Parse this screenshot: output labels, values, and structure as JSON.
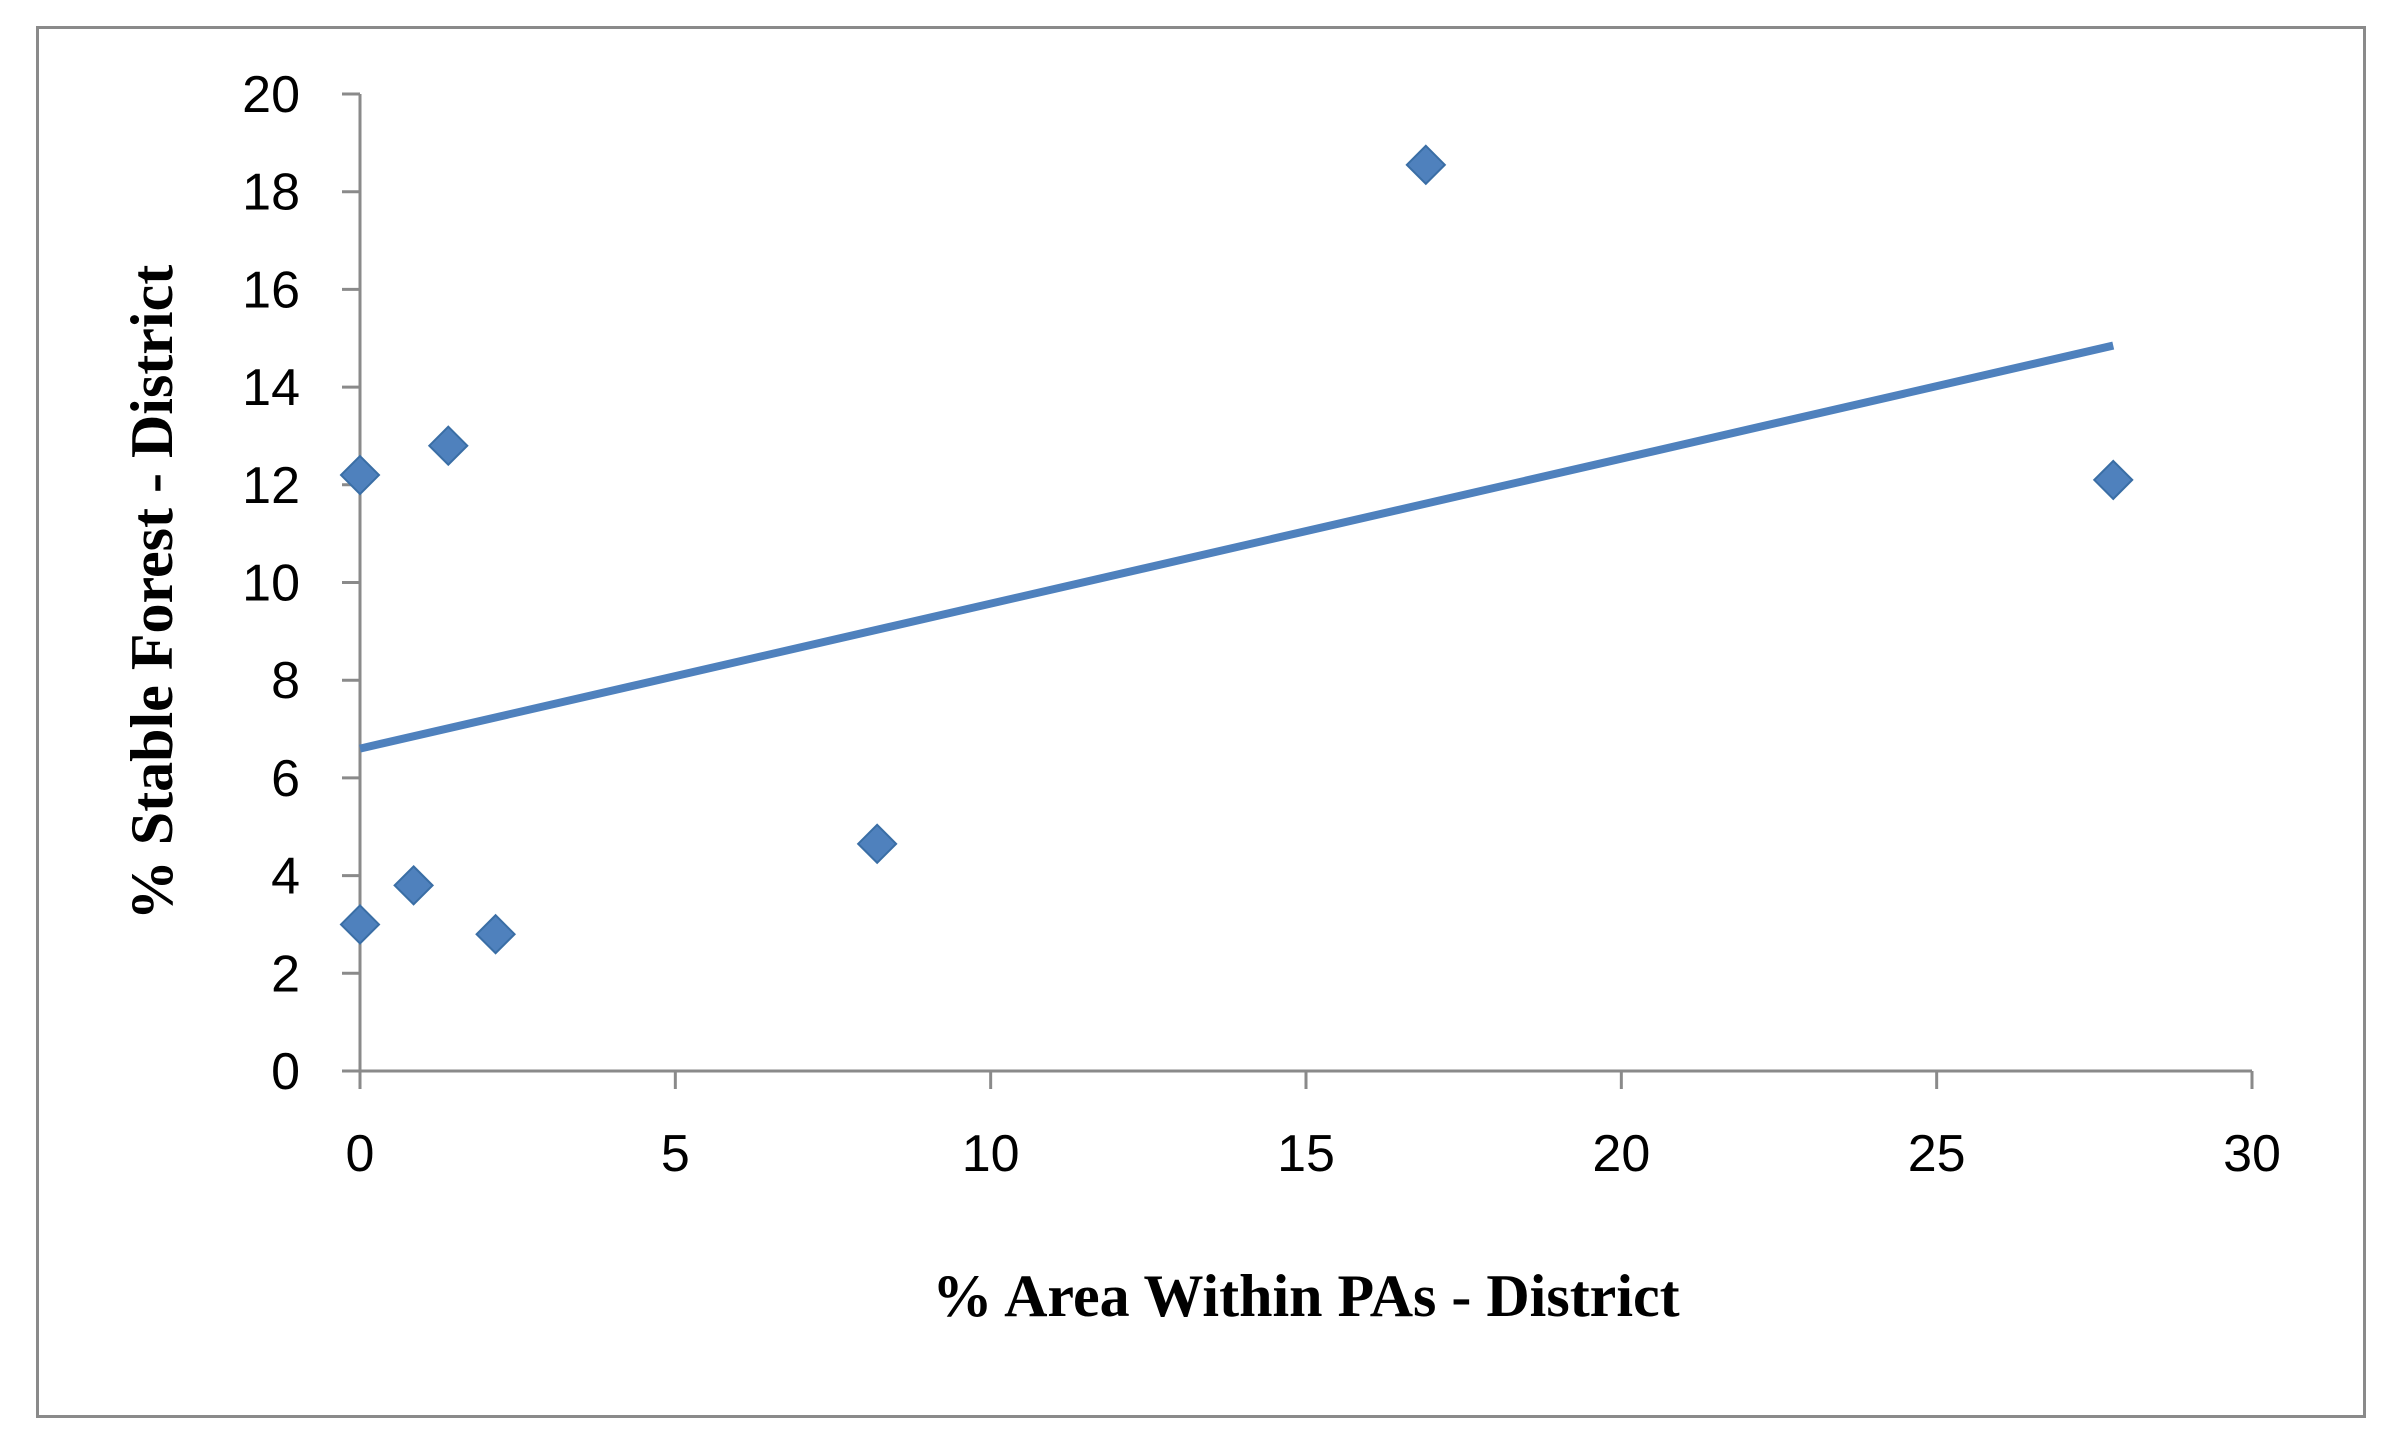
{
  "chart_data": {
    "type": "scatter",
    "title": "",
    "xlabel": "% Area Within PAs - District",
    "ylabel": "% Stable Forest - District",
    "xlim": [
      0,
      30
    ],
    "ylim": [
      0,
      20
    ],
    "x_ticks": [
      0,
      5,
      10,
      15,
      20,
      25,
      30
    ],
    "y_ticks": [
      0,
      2,
      4,
      6,
      8,
      10,
      12,
      14,
      16,
      18,
      20
    ],
    "grid": false,
    "legend": "none",
    "series": [
      {
        "points": [
          {
            "x": 0.0,
            "y": 12.2
          },
          {
            "x": 0.0,
            "y": 3.0
          },
          {
            "x": 0.85,
            "y": 3.8
          },
          {
            "x": 1.4,
            "y": 12.8
          },
          {
            "x": 2.15,
            "y": 2.8
          },
          {
            "x": 8.2,
            "y": 4.65
          },
          {
            "x": 16.9,
            "y": 18.55
          },
          {
            "x": 27.8,
            "y": 12.1
          }
        ],
        "marker": "diamond",
        "color": "#4f81bd"
      }
    ],
    "trendline": {
      "type": "linear",
      "x_range": [
        0,
        27.8
      ],
      "y_range": [
        6.6,
        14.85
      ],
      "color": "#4f81bd"
    }
  }
}
